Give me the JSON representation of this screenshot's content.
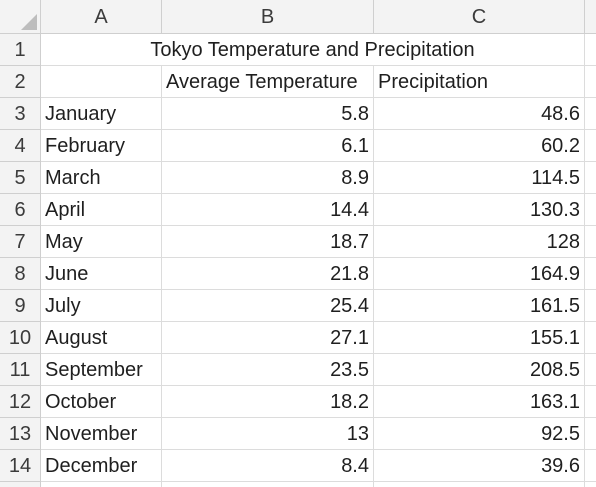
{
  "columns": [
    "A",
    "B",
    "C"
  ],
  "title": "Tokyo Temperature and Precipitation",
  "headers": {
    "b": "Average Temperature",
    "c": "Precipitation"
  },
  "rows": [
    {
      "num": "1"
    },
    {
      "num": "2"
    },
    {
      "num": "3",
      "month": "January",
      "temp": "5.8",
      "precip": "48.6"
    },
    {
      "num": "4",
      "month": "February",
      "temp": "6.1",
      "precip": "60.2"
    },
    {
      "num": "5",
      "month": "March",
      "temp": "8.9",
      "precip": "114.5"
    },
    {
      "num": "6",
      "month": "April",
      "temp": "14.4",
      "precip": "130.3"
    },
    {
      "num": "7",
      "month": "May",
      "temp": "18.7",
      "precip": "128"
    },
    {
      "num": "8",
      "month": "June",
      "temp": "21.8",
      "precip": "164.9"
    },
    {
      "num": "9",
      "month": "July",
      "temp": "25.4",
      "precip": "161.5"
    },
    {
      "num": "10",
      "month": "August",
      "temp": "27.1",
      "precip": "155.1"
    },
    {
      "num": "11",
      "month": "September",
      "temp": "23.5",
      "precip": "208.5"
    },
    {
      "num": "12",
      "month": "October",
      "temp": "18.2",
      "precip": "163.1"
    },
    {
      "num": "13",
      "month": "November",
      "temp": "13",
      "precip": "92.5"
    },
    {
      "num": "14",
      "month": "December",
      "temp": "8.4",
      "precip": "39.6"
    }
  ]
}
